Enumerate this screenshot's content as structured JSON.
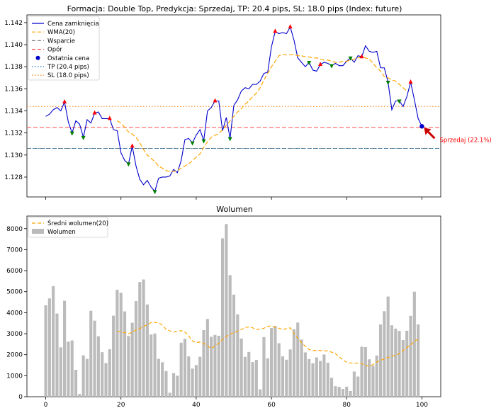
{
  "chart_data": [
    {
      "type": "line",
      "title": "Formacja: Double Top, Predykcja: Sprzedaj, TP: 20.4 pips, SL: 18.0 pips (Index: future)",
      "xlabel": "",
      "ylabel": "",
      "xlim": [
        -5,
        105
      ],
      "ylim": [
        1.1262,
        1.1427
      ],
      "grid": false,
      "legend_position": "top-left",
      "x_ticks": [
        0,
        20,
        40,
        60,
        80,
        100
      ],
      "y_ticks": [
        1.128,
        1.13,
        1.132,
        1.134,
        1.136,
        1.138,
        1.14,
        1.142
      ],
      "x_tick_labels": [
        "0",
        "20",
        "40",
        "60",
        "80",
        "100"
      ],
      "y_tick_labels": [
        "1.128",
        "1.130",
        "1.132",
        "1.134",
        "1.136",
        "1.138",
        "1.140",
        "1.142"
      ],
      "legend": [
        "Cena zamknięcia",
        "WMA(20)",
        "Wsparcie",
        "Opór",
        "Ostatnia cena",
        "TP (20.4 pips)",
        "SL (18.0 pips)"
      ],
      "series": [
        {
          "name": "Cena zamknięcia",
          "color": "#0000cc",
          "style": "solid",
          "values": [
            1.1335,
            1.1337,
            1.1341,
            1.1343,
            1.134,
            1.1348,
            1.133,
            1.132,
            1.1331,
            1.1328,
            1.1316,
            1.1332,
            1.1329,
            1.1338,
            1.1339,
            1.1333,
            1.1333,
            1.1333,
            1.1323,
            1.1322,
            1.1302,
            1.1295,
            1.1292,
            1.1308,
            1.129,
            1.1278,
            1.1273,
            1.1277,
            1.1271,
            1.1267,
            1.1279,
            1.128,
            1.128,
            1.1281,
            1.1287,
            1.1284,
            1.1295,
            1.1314,
            1.1315,
            1.1311,
            1.1318,
            1.1323,
            1.1313,
            1.134,
            1.1343,
            1.1349,
            1.1349,
            1.1322,
            1.1334,
            1.1315,
            1.1345,
            1.135,
            1.1358,
            1.1361,
            1.136,
            1.1364,
            1.1364,
            1.1367,
            1.1374,
            1.1375,
            1.1398,
            1.1412,
            1.141,
            1.1411,
            1.141,
            1.1416,
            1.1404,
            1.1388,
            1.1384,
            1.138,
            1.1384,
            1.1377,
            1.1376,
            1.1382,
            1.1384,
            1.1383,
            1.1381,
            1.1383,
            1.1381,
            1.1381,
            1.1385,
            1.1388,
            1.1384,
            1.139,
            1.1389,
            1.1399,
            1.1394,
            1.1393,
            1.1394,
            1.1379,
            1.1379,
            1.1366,
            1.1341,
            1.1349,
            1.1349,
            1.1344,
            1.1353,
            1.1366,
            1.135,
            1.1333,
            1.1326
          ]
        },
        {
          "name": "WMA(20)",
          "color": "#ffa500",
          "style": "dashed",
          "x_start": 19,
          "values": [
            1.1331,
            1.1329,
            1.1325,
            1.1321,
            1.1319,
            1.1316,
            1.1311,
            1.1305,
            1.13,
            1.1297,
            1.1294,
            1.129,
            1.1288,
            1.1286,
            1.1285,
            1.1285,
            1.1286,
            1.1288,
            1.129,
            1.1292,
            1.1295,
            1.1298,
            1.1301,
            1.1307,
            1.1312,
            1.1316,
            1.1318,
            1.1319,
            1.1323,
            1.1327,
            1.1331,
            1.1335,
            1.1339,
            1.1342,
            1.1346,
            1.1349,
            1.1353,
            1.1356,
            1.1361,
            1.1368,
            1.1374,
            1.138,
            1.1385,
            1.139,
            1.1391,
            1.1391,
            1.1391,
            1.1391,
            1.139,
            1.139,
            1.1389,
            1.1389,
            1.1388,
            1.1388,
            1.1387,
            1.1386,
            1.1386,
            1.1385,
            1.1384,
            1.1384,
            1.1385,
            1.1385,
            1.1386,
            1.1387,
            1.1388,
            1.1389,
            1.1388,
            1.1387,
            1.1383,
            1.1379,
            1.1376,
            1.1371,
            1.137,
            1.1368,
            1.1367,
            1.1364,
            1.1361,
            1.1358
          ]
        }
      ],
      "horizontal_lines": [
        {
          "name": "Wsparcie",
          "y": 1.1306,
          "color": "#7f7f7f",
          "style": "dashed"
        },
        {
          "name": "Opór",
          "y": 1.1325,
          "color": "#ff4d4d",
          "style": "dashed"
        },
        {
          "name": "TP (20.4 pips)",
          "y": 1.1306,
          "color": "#1f77b4",
          "style": "dotted"
        },
        {
          "name": "SL (18.0 pips)",
          "y": 1.1344,
          "color": "#ff7f0e",
          "style": "dotted"
        }
      ],
      "last_price": {
        "name": "Ostatnia cena",
        "x": 100,
        "y": 1.1326,
        "color": "#0000cc"
      },
      "peaks": [
        5,
        13,
        17,
        23,
        45,
        61,
        65,
        73,
        84,
        97
      ],
      "troughs": [
        7,
        10,
        22,
        29,
        39,
        42,
        49,
        70,
        76,
        81,
        91,
        94
      ],
      "peak_marker_color": "#ff0000",
      "trough_marker_color": "#008000",
      "annotation": {
        "text": "Sprzedaj (22.1%)",
        "color": "#ff0000",
        "arrow_color": "#cc0000"
      }
    },
    {
      "type": "bar",
      "title": "Wolumen",
      "xlabel": "",
      "ylabel": "",
      "xlim": [
        -5,
        105
      ],
      "ylim": [
        0,
        8600
      ],
      "grid": false,
      "legend_position": "top-left",
      "x_ticks": [
        0,
        20,
        40,
        60,
        80,
        100
      ],
      "y_ticks": [
        0,
        1000,
        2000,
        3000,
        4000,
        5000,
        6000,
        7000,
        8000
      ],
      "x_tick_labels": [
        "0",
        "20",
        "40",
        "60",
        "80",
        "100"
      ],
      "y_tick_labels": [
        "0",
        "1000",
        "2000",
        "3000",
        "4000",
        "5000",
        "6000",
        "7000",
        "8000"
      ],
      "legend": [
        "Średni wolumen(20)",
        "Wolumen"
      ],
      "series": [
        {
          "name": "Wolumen",
          "color": "#bbbbbb",
          "values": [
            4350,
            4680,
            5260,
            3960,
            2350,
            4570,
            2620,
            2680,
            1280,
            130,
            1970,
            1800,
            4090,
            3620,
            2880,
            2120,
            1600,
            2260,
            3860,
            5090,
            4950,
            4060,
            2890,
            3520,
            4550,
            5460,
            5580,
            4390,
            2960,
            3010,
            1800,
            1640,
            1220,
            190,
            1120,
            1000,
            2570,
            2760,
            1920,
            1340,
            1510,
            1900,
            3170,
            3700,
            2850,
            2940,
            2900,
            7540,
            8220,
            5790,
            4860,
            3920,
            2770,
            1900,
            2130,
            1650,
            1750,
            350,
            2840,
            1830,
            3270,
            3370,
            2550,
            1920,
            1760,
            2250,
            3210,
            3530,
            2720,
            2110,
            1790,
            1590,
            1870,
            1700,
            2010,
            1620,
            900,
            500,
            470,
            370,
            480,
            270,
            1200,
            960,
            2380,
            2360,
            1780,
            1480,
            1960,
            3440,
            4070,
            4770,
            3400,
            3240,
            3130,
            2700,
            3140,
            3850,
            5000,
            3440
          ]
        },
        {
          "name": "Średni wolumen(20)",
          "color": "#ffa500",
          "style": "dashed",
          "x_start": 19,
          "values": [
            3100,
            3090,
            3050,
            3000,
            3070,
            3180,
            3240,
            3350,
            3420,
            3530,
            3540,
            3520,
            3410,
            3210,
            3130,
            3080,
            3100,
            3150,
            3080,
            2900,
            2650,
            2580,
            2600,
            2540,
            2420,
            2300,
            2420,
            2550,
            2720,
            2870,
            2980,
            3040,
            3120,
            3200,
            3290,
            3320,
            3280,
            3200,
            3210,
            3260,
            3350,
            3370,
            3300,
            3260,
            3200,
            3240,
            3280,
            3000,
            2780,
            2580,
            2400,
            2250,
            2200,
            2200,
            2200,
            2180,
            2180,
            2120,
            2050,
            1900,
            1750,
            1640,
            1600,
            1600,
            1600,
            1580,
            1480,
            1460,
            1530,
            1650,
            1730,
            1800,
            1870,
            1920,
            1980,
            2050,
            2200,
            2350,
            2450,
            2650,
            2730
          ]
        }
      ]
    }
  ]
}
